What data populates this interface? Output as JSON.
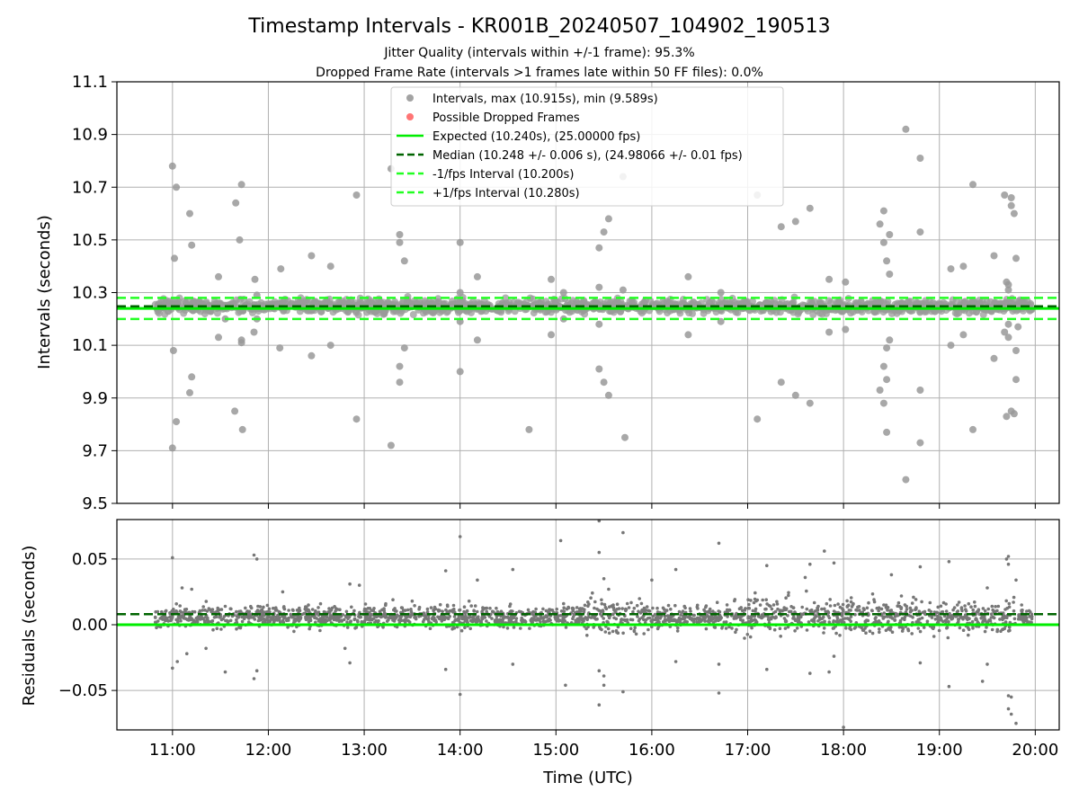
{
  "figure": {
    "title": "Timestamp Intervals - KR001B_20240507_104902_190513",
    "subtitle_line1": "Jitter Quality (intervals within +/-1 frame): 95.3%",
    "subtitle_line2": "Dropped Frame Rate (intervals >1 frames late within 50 FF files): 0.0%",
    "xlabel": "Time (UTC)",
    "x_ticks": [
      "11:00",
      "12:00",
      "13:00",
      "14:00",
      "15:00",
      "16:00",
      "17:00",
      "18:00",
      "19:00",
      "20:00"
    ]
  },
  "legend": {
    "placement": "upper-center",
    "items": [
      {
        "label": "Intervals, max (10.915s), min (9.589s)",
        "marker": "dot",
        "color": "#999999"
      },
      {
        "label": "Possible Dropped Frames",
        "marker": "dot",
        "color": "#ff6666"
      },
      {
        "label": "Expected (10.240s), (25.00000 fps)",
        "marker": "solid",
        "color": "#00ee00"
      },
      {
        "label": "Median (10.248 +/- 0.006 s), (24.98066 +/- 0.01 fps)",
        "marker": "dashed",
        "color": "#006400"
      },
      {
        "label": "-1/fps Interval (10.200s)",
        "marker": "dashed",
        "color": "#22ff22"
      },
      {
        "label": "+1/fps Interval (10.280s)",
        "marker": "dashed",
        "color": "#22ff22"
      }
    ]
  },
  "chart_data": [
    {
      "type": "scatter",
      "panel": "intervals",
      "ylabel": "Intervals (seconds)",
      "x_unit": "time of day (UTC, hours)",
      "xlim": [
        10.42,
        20.25
      ],
      "ylim": [
        9.5,
        11.1
      ],
      "y_ticks": [
        "9.5",
        "9.7",
        "9.9",
        "10.1",
        "10.3",
        "10.5",
        "10.7",
        "10.9",
        "11.1"
      ],
      "grid": true,
      "reference_lines": {
        "expected": 10.24,
        "median": 10.248,
        "minus_one_fps": 10.2,
        "plus_one_fps": 10.28
      },
      "dense_band": {
        "x_range": [
          10.82,
          19.97
        ],
        "y_center": 10.248,
        "y_spread": 0.025
      },
      "outliers": [
        [
          11.0,
          10.78
        ],
        [
          11.02,
          10.43
        ],
        [
          11.04,
          10.7
        ],
        [
          11.0,
          9.71
        ],
        [
          11.04,
          9.81
        ],
        [
          11.01,
          10.08
        ],
        [
          11.18,
          10.6
        ],
        [
          11.2,
          10.48
        ],
        [
          11.2,
          9.98
        ],
        [
          11.18,
          9.92
        ],
        [
          11.48,
          10.36
        ],
        [
          11.48,
          10.13
        ],
        [
          11.55,
          10.2
        ],
        [
          11.66,
          10.64
        ],
        [
          11.72,
          10.71
        ],
        [
          11.7,
          10.5
        ],
        [
          11.72,
          10.12
        ],
        [
          11.72,
          10.11
        ],
        [
          11.65,
          9.85
        ],
        [
          11.73,
          9.78
        ],
        [
          11.86,
          10.35
        ],
        [
          11.88,
          10.29
        ],
        [
          11.88,
          10.2
        ],
        [
          11.85,
          10.15
        ],
        [
          12.13,
          10.39
        ],
        [
          12.12,
          10.09
        ],
        [
          12.45,
          10.44
        ],
        [
          12.45,
          10.06
        ],
        [
          12.65,
          10.4
        ],
        [
          12.65,
          10.1
        ],
        [
          12.92,
          10.67
        ],
        [
          12.92,
          9.82
        ],
        [
          13.28,
          10.77
        ],
        [
          13.28,
          9.72
        ],
        [
          13.37,
          10.52
        ],
        [
          13.37,
          10.49
        ],
        [
          13.42,
          10.42
        ],
        [
          13.42,
          10.09
        ],
        [
          13.37,
          10.02
        ],
        [
          13.37,
          9.96
        ],
        [
          14.0,
          10.49
        ],
        [
          14.0,
          10.3
        ],
        [
          14.0,
          10.19
        ],
        [
          14.0,
          10.0
        ],
        [
          14.18,
          10.36
        ],
        [
          14.18,
          10.12
        ],
        [
          14.72,
          9.78
        ],
        [
          14.95,
          10.35
        ],
        [
          14.95,
          10.14
        ],
        [
          15.08,
          10.3
        ],
        [
          15.08,
          10.2
        ],
        [
          15.45,
          10.47
        ],
        [
          15.45,
          10.32
        ],
        [
          15.5,
          10.53
        ],
        [
          15.55,
          10.58
        ],
        [
          15.45,
          10.18
        ],
        [
          15.45,
          10.01
        ],
        [
          15.5,
          9.96
        ],
        [
          15.55,
          9.91
        ],
        [
          15.7,
          10.74
        ],
        [
          15.7,
          10.31
        ],
        [
          15.72,
          9.75
        ],
        [
          16.38,
          10.36
        ],
        [
          16.38,
          10.14
        ],
        [
          16.72,
          10.3
        ],
        [
          16.72,
          10.19
        ],
        [
          17.1,
          10.67
        ],
        [
          17.1,
          9.82
        ],
        [
          17.35,
          10.55
        ],
        [
          17.35,
          9.96
        ],
        [
          17.5,
          10.57
        ],
        [
          17.5,
          9.91
        ],
        [
          17.65,
          10.62
        ],
        [
          17.65,
          9.88
        ],
        [
          17.85,
          10.35
        ],
        [
          17.85,
          10.15
        ],
        [
          18.02,
          10.34
        ],
        [
          18.02,
          10.16
        ],
        [
          18.38,
          10.56
        ],
        [
          18.42,
          10.49
        ],
        [
          18.42,
          10.61
        ],
        [
          18.45,
          10.42
        ],
        [
          18.48,
          10.37
        ],
        [
          18.48,
          10.52
        ],
        [
          18.42,
          10.02
        ],
        [
          18.45,
          10.09
        ],
        [
          18.48,
          10.12
        ],
        [
          18.38,
          9.93
        ],
        [
          18.42,
          9.88
        ],
        [
          18.45,
          9.97
        ],
        [
          18.45,
          9.77
        ],
        [
          18.65,
          10.92
        ],
        [
          18.65,
          9.59
        ],
        [
          18.8,
          10.81
        ],
        [
          18.8,
          10.53
        ],
        [
          18.8,
          9.93
        ],
        [
          18.8,
          9.73
        ],
        [
          19.12,
          10.39
        ],
        [
          19.12,
          10.1
        ],
        [
          19.25,
          10.4
        ],
        [
          19.25,
          10.14
        ],
        [
          19.35,
          10.71
        ],
        [
          19.35,
          9.78
        ],
        [
          19.57,
          10.44
        ],
        [
          19.57,
          10.05
        ],
        [
          19.68,
          10.67
        ],
        [
          19.7,
          10.34
        ],
        [
          19.72,
          10.33
        ],
        [
          19.72,
          10.31
        ],
        [
          19.75,
          10.66
        ],
        [
          19.75,
          10.63
        ],
        [
          19.78,
          10.6
        ],
        [
          19.8,
          10.43
        ],
        [
          19.68,
          10.15
        ],
        [
          19.72,
          10.13
        ],
        [
          19.72,
          10.18
        ],
        [
          19.7,
          9.83
        ],
        [
          19.75,
          9.85
        ],
        [
          19.78,
          9.84
        ],
        [
          19.8,
          10.08
        ],
        [
          19.8,
          9.97
        ],
        [
          19.82,
          10.17
        ]
      ]
    },
    {
      "type": "scatter",
      "panel": "residuals",
      "ylabel": "Residuals (seconds)",
      "xlabel": "Time (UTC)",
      "x_unit": "time of day (UTC, hours)",
      "xlim": [
        10.42,
        20.25
      ],
      "ylim": [
        -0.08,
        0.08
      ],
      "y_ticks": [
        "−0.05",
        "0.00",
        "0.05"
      ],
      "x_ticks": [
        "11:00",
        "12:00",
        "13:00",
        "14:00",
        "15:00",
        "16:00",
        "17:00",
        "18:00",
        "19:00",
        "20:00"
      ],
      "grid": true,
      "reference_lines": {
        "zero": 0.0,
        "median": 0.008
      },
      "dense_band": {
        "x_range": [
          10.82,
          19.97
        ],
        "y_center": 0.006,
        "y_spread": 0.008
      },
      "outliers": [
        [
          11.0,
          0.051
        ],
        [
          11.0,
          -0.033
        ],
        [
          11.05,
          -0.028
        ],
        [
          11.1,
          0.028
        ],
        [
          11.15,
          -0.022
        ],
        [
          11.2,
          0.027
        ],
        [
          11.35,
          -0.018
        ],
        [
          11.55,
          -0.036
        ],
        [
          11.55,
          0.014
        ],
        [
          11.85,
          0.053
        ],
        [
          11.88,
          0.05
        ],
        [
          11.88,
          -0.035
        ],
        [
          11.85,
          -0.041
        ],
        [
          12.15,
          0.025
        ],
        [
          12.8,
          -0.018
        ],
        [
          12.85,
          0.031
        ],
        [
          12.85,
          -0.029
        ],
        [
          12.95,
          0.03
        ],
        [
          13.3,
          0.019
        ],
        [
          13.5,
          0.018
        ],
        [
          13.85,
          0.041
        ],
        [
          13.85,
          -0.034
        ],
        [
          14.0,
          0.067
        ],
        [
          14.0,
          -0.053
        ],
        [
          14.18,
          0.034
        ],
        [
          14.55,
          0.042
        ],
        [
          14.55,
          -0.03
        ],
        [
          15.05,
          0.064
        ],
        [
          15.1,
          -0.046
        ],
        [
          15.45,
          0.079
        ],
        [
          15.45,
          -0.061
        ],
        [
          15.45,
          0.055
        ],
        [
          15.5,
          0.035
        ],
        [
          15.5,
          -0.046
        ],
        [
          15.55,
          0.027
        ],
        [
          15.45,
          -0.035
        ],
        [
          15.5,
          -0.039
        ],
        [
          15.7,
          0.07
        ],
        [
          15.7,
          -0.051
        ],
        [
          16.0,
          0.034
        ],
        [
          16.25,
          0.042
        ],
        [
          16.25,
          -0.028
        ],
        [
          16.7,
          0.062
        ],
        [
          16.7,
          -0.052
        ],
        [
          16.7,
          -0.03
        ],
        [
          17.2,
          0.045
        ],
        [
          17.2,
          -0.034
        ],
        [
          17.6,
          0.036
        ],
        [
          17.65,
          0.046
        ],
        [
          17.65,
          -0.037
        ],
        [
          17.8,
          0.056
        ],
        [
          17.85,
          -0.036
        ],
        [
          17.9,
          0.047
        ],
        [
          17.9,
          -0.024
        ],
        [
          18.0,
          -0.078
        ],
        [
          18.5,
          0.038
        ],
        [
          18.8,
          0.044
        ],
        [
          18.8,
          -0.029
        ],
        [
          19.1,
          0.048
        ],
        [
          19.1,
          -0.047
        ],
        [
          19.45,
          -0.043
        ],
        [
          19.5,
          0.028
        ],
        [
          19.5,
          -0.03
        ],
        [
          19.7,
          0.05
        ],
        [
          19.72,
          0.052
        ],
        [
          19.72,
          0.046
        ],
        [
          19.72,
          -0.054
        ],
        [
          19.75,
          -0.055
        ],
        [
          19.72,
          -0.064
        ],
        [
          19.75,
          -0.068
        ],
        [
          19.8,
          -0.075
        ],
        [
          19.8,
          0.034
        ]
      ]
    }
  ]
}
